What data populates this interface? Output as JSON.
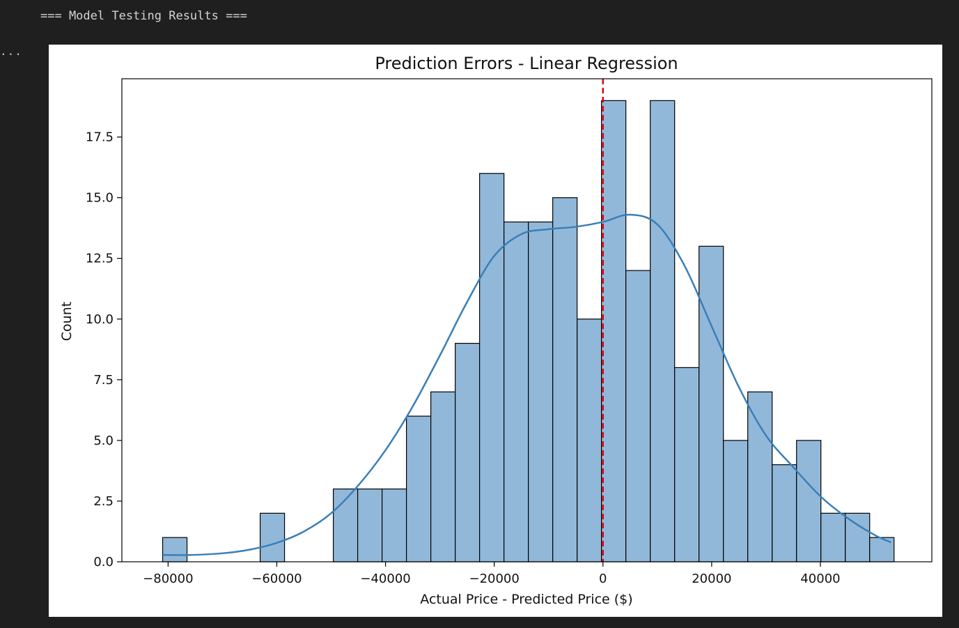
{
  "output": {
    "header_text": "=== Model Testing Results ===",
    "more_icon_text": "..."
  },
  "chart_data": {
    "type": "bar",
    "subtype": "histogram",
    "title": "Prediction Errors - Linear Regression",
    "xlabel": "Actual Price - Predicted Price ($)",
    "ylabel": "Count",
    "xlim": [
      -88500,
      60500
    ],
    "ylim": [
      0,
      19.9
    ],
    "xticks": [
      -80000,
      -60000,
      -40000,
      -20000,
      0,
      20000,
      40000
    ],
    "yticks": [
      0,
      2.5,
      5,
      7.5,
      10,
      12.5,
      15,
      17.5
    ],
    "bin_start": -81000,
    "bin_width": 4485,
    "counts": [
      1,
      0,
      0,
      0,
      2,
      0,
      0,
      3,
      3,
      3,
      6,
      7,
      9,
      16,
      14,
      14,
      15,
      10,
      19,
      12,
      19,
      8,
      13,
      5,
      7,
      4,
      5,
      2,
      2,
      1
    ],
    "kde": {
      "x": [
        -81000,
        -76000,
        -70000,
        -65000,
        -60000,
        -55000,
        -50000,
        -45000,
        -40000,
        -35000,
        -30000,
        -25000,
        -20000,
        -15000,
        -10000,
        -5000,
        0,
        5000,
        10000,
        15000,
        20000,
        25000,
        30000,
        35000,
        40000,
        45000,
        50000,
        53000
      ],
      "y": [
        0.28,
        0.28,
        0.35,
        0.5,
        0.78,
        1.25,
        2.0,
        3.15,
        4.6,
        6.4,
        8.5,
        10.7,
        12.6,
        13.5,
        13.7,
        13.8,
        14.0,
        14.3,
        13.9,
        12.2,
        9.7,
        7.2,
        5.2,
        3.9,
        2.7,
        1.8,
        1.1,
        0.8
      ]
    },
    "vline": {
      "x": 0,
      "style": "dashed"
    },
    "colors": {
      "bar_fill": "#92b8d9",
      "bar_edge": "#000000",
      "kde_line": "#3a7fb8",
      "vline": "#e8000b"
    },
    "grid": false,
    "legend": "none"
  }
}
